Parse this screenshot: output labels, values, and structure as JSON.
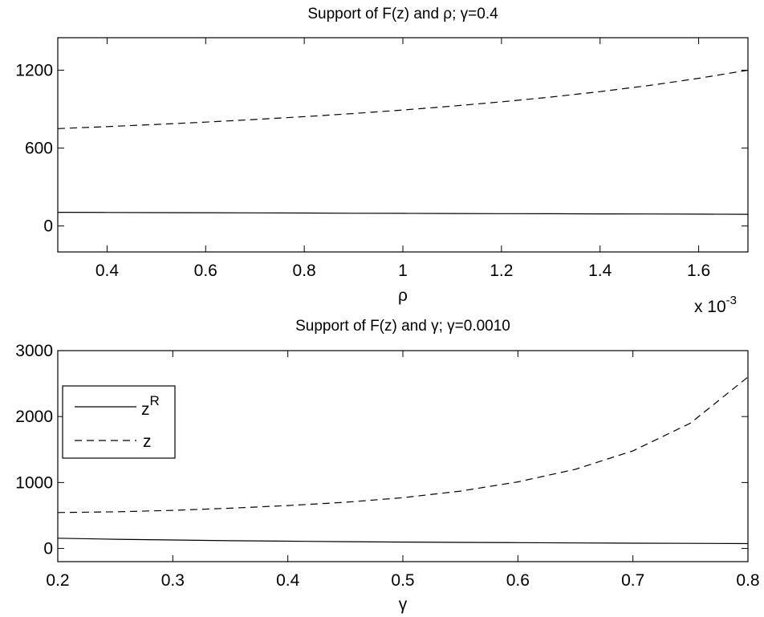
{
  "chart_data": [
    {
      "type": "line",
      "title": "Support of F(z) and ρ; γ=0.4",
      "xlabel": "ρ",
      "ylabel": "",
      "x_exponent_label": "x 10",
      "x_exponent_sup": "-3",
      "xlim": [
        0.3,
        1.7
      ],
      "ylim": [
        -200,
        1450
      ],
      "xticks": [
        0.4,
        0.6,
        0.8,
        1.0,
        1.2,
        1.4,
        1.6
      ],
      "xtick_labels": [
        "0.4",
        "0.6",
        "0.8",
        "1",
        "1.2",
        "1.4",
        "1.6"
      ],
      "yticks": [
        0,
        600,
        1200
      ],
      "ytick_labels": [
        "0",
        "600",
        "1200"
      ],
      "grid": false,
      "series": [
        {
          "style": "solid",
          "x": [
            0.3,
            0.4,
            0.5,
            0.6,
            0.7,
            0.8,
            0.9,
            1.0,
            1.1,
            1.2,
            1.3,
            1.4,
            1.5,
            1.6,
            1.7
          ],
          "y": [
            105,
            104,
            103,
            102,
            101,
            100,
            98,
            97,
            96,
            95,
            94,
            93,
            92,
            91,
            90
          ]
        },
        {
          "style": "dashed",
          "x": [
            0.3,
            0.4,
            0.5,
            0.6,
            0.7,
            0.8,
            0.9,
            1.0,
            1.1,
            1.2,
            1.3,
            1.4,
            1.5,
            1.6,
            1.7
          ],
          "y": [
            750,
            765,
            782,
            800,
            820,
            842,
            866,
            893,
            923,
            956,
            993,
            1035,
            1082,
            1137,
            1200
          ]
        }
      ]
    },
    {
      "type": "line",
      "title": "Support of F(z) and γ; γ=0.0010",
      "xlabel": "γ",
      "ylabel": "",
      "xlim": [
        0.2,
        0.8
      ],
      "ylim": [
        -200,
        3000
      ],
      "xticks": [
        0.2,
        0.3,
        0.4,
        0.5,
        0.6,
        0.7,
        0.8
      ],
      "xtick_labels": [
        "0.2",
        "0.3",
        "0.4",
        "0.5",
        "0.6",
        "0.7",
        "0.8"
      ],
      "yticks": [
        0,
        1000,
        2000,
        3000
      ],
      "ytick_labels": [
        "0",
        "1000",
        "2000",
        "3000"
      ],
      "grid": false,
      "legend": {
        "position": "upper-left",
        "entries": [
          {
            "label": "z",
            "sup": "R",
            "style": "solid"
          },
          {
            "label": "z",
            "sup": "",
            "style": "dashed"
          }
        ]
      },
      "series": [
        {
          "style": "solid",
          "x": [
            0.2,
            0.25,
            0.3,
            0.35,
            0.4,
            0.45,
            0.5,
            0.55,
            0.6,
            0.65,
            0.7,
            0.75,
            0.8
          ],
          "y": [
            155,
            140,
            128,
            118,
            110,
            103,
            97,
            92,
            88,
            84,
            80,
            77,
            74
          ]
        },
        {
          "style": "dashed",
          "x": [
            0.2,
            0.25,
            0.3,
            0.35,
            0.4,
            0.45,
            0.5,
            0.55,
            0.6,
            0.65,
            0.7,
            0.75,
            0.8
          ],
          "y": [
            545,
            555,
            578,
            610,
            650,
            700,
            770,
            870,
            1010,
            1200,
            1480,
            1900,
            2600
          ]
        }
      ]
    }
  ]
}
